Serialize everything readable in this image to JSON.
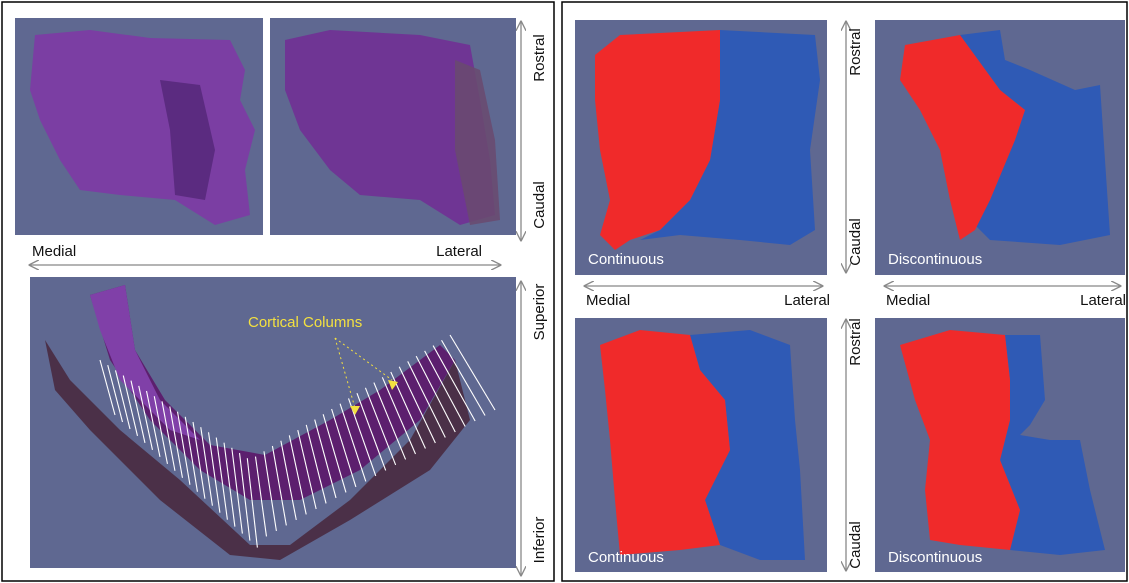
{
  "left_panel": {
    "top": {
      "medial": "Medial",
      "lateral": "Lateral",
      "rostral": "Rostral",
      "caudal": "Caudal"
    },
    "bottom": {
      "superior": "Superior",
      "inferior": "Inferior",
      "annotation": "Cortical Columns"
    }
  },
  "right_panel": {
    "top": {
      "rostral": "Rostral",
      "caudal": "Caudal",
      "left_caption": "Continuous",
      "right_caption": "Discontinuous",
      "left_medial": "Medial",
      "left_lateral": "Lateral",
      "right_medial": "Medial",
      "right_lateral": "Lateral"
    },
    "bottom": {
      "rostral": "Rostral",
      "caudal": "Caudal",
      "left_caption": "Continuous",
      "right_caption": "Discontinuous"
    }
  }
}
